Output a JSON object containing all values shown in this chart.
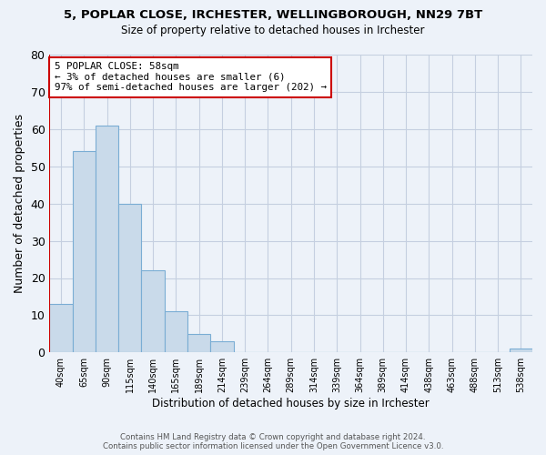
{
  "title_line1": "5, POPLAR CLOSE, IRCHESTER, WELLINGBOROUGH, NN29 7BT",
  "title_line2": "Size of property relative to detached houses in Irchester",
  "xlabel": "Distribution of detached houses by size in Irchester",
  "ylabel": "Number of detached properties",
  "bin_labels": [
    "40sqm",
    "65sqm",
    "90sqm",
    "115sqm",
    "140sqm",
    "165sqm",
    "189sqm",
    "214sqm",
    "239sqm",
    "264sqm",
    "289sqm",
    "314sqm",
    "339sqm",
    "364sqm",
    "389sqm",
    "414sqm",
    "438sqm",
    "463sqm",
    "488sqm",
    "513sqm",
    "538sqm"
  ],
  "bar_heights": [
    13,
    54,
    61,
    40,
    22,
    11,
    5,
    3,
    0,
    0,
    0,
    0,
    0,
    0,
    0,
    0,
    0,
    0,
    0,
    0,
    1
  ],
  "bar_color": "#c9daea",
  "bar_edge_color": "#7aadd4",
  "ylim": [
    0,
    80
  ],
  "yticks": [
    0,
    10,
    20,
    30,
    40,
    50,
    60,
    70,
    80
  ],
  "annotation_text": "5 POPLAR CLOSE: 58sqm\n← 3% of detached houses are smaller (6)\n97% of semi-detached houses are larger (202) →",
  "annotation_box_color": "#ffffff",
  "annotation_box_edge_color": "#cc0000",
  "red_line_color": "#cc0000",
  "footer_line1": "Contains HM Land Registry data © Crown copyright and database right 2024.",
  "footer_line2": "Contains public sector information licensed under the Open Government Licence v3.0.",
  "background_color": "#edf2f9",
  "grid_color": "#c5cfe0"
}
